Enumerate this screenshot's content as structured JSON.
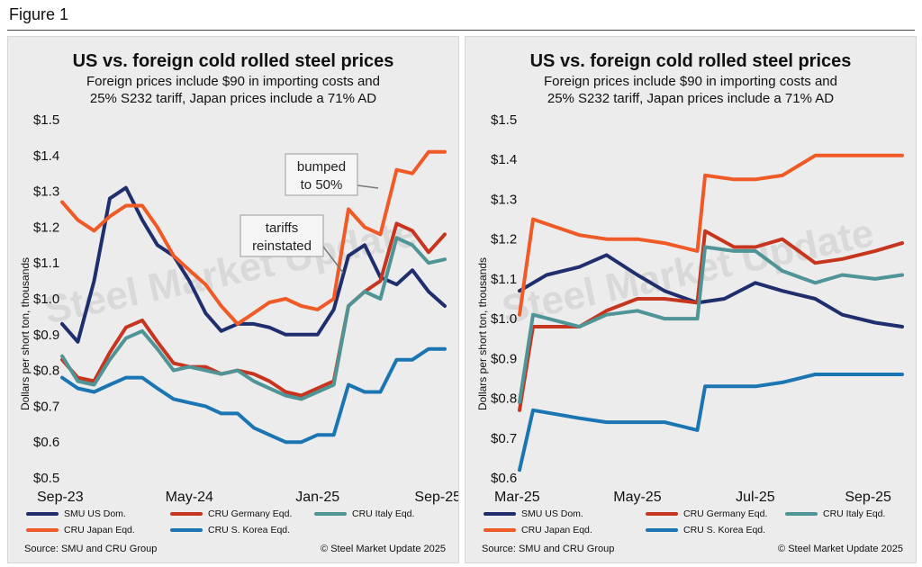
{
  "figure_label": "Figure 1",
  "colors": {
    "SMU US Dom.": "#1f2f6e",
    "CRU Germany Eqd.": "#c8351f",
    "CRU Italy Eqd.": "#4f9496",
    "CRU Japan Eqd.": "#ef5a26",
    "CRU S. Korea Eqd.": "#1b75b3"
  },
  "chart_data": [
    {
      "type": "line",
      "title": "US vs. foreign cold rolled steel prices",
      "subtitle_lines": [
        "Foreign prices include $90 in importing costs and",
        "25% S232 tariff, Japan prices include a 71% AD"
      ],
      "ylabel": "Dollars per short ton, thousands",
      "ylim": [
        0.5,
        1.5
      ],
      "yticks": [
        "$0.5",
        "$0.6",
        "$0.7",
        "$0.8",
        "$0.9",
        "$1.0",
        "$1.1",
        "$1.2",
        "$1.3",
        "$1.4",
        "$1.5"
      ],
      "xlim": [
        "2023-09",
        "2025-09"
      ],
      "xticks": [
        {
          "x": "2023-09",
          "label": "Sep-23"
        },
        {
          "x": "2024-05",
          "label": "May-24"
        },
        {
          "x": "2025-01",
          "label": "Jan-25"
        },
        {
          "x": "2025-09",
          "label": "Sep-25"
        }
      ],
      "annotations": [
        {
          "text": [
            "bumped",
            "to 50%"
          ],
          "points_to": "2025-06"
        },
        {
          "text": [
            "tariffs",
            "reinstated"
          ],
          "points_to": "2025-03"
        }
      ],
      "watermark": "Steel Market Update",
      "series": [
        {
          "name": "SMU US Dom.",
          "points": [
            [
              "2023-09",
              0.93
            ],
            [
              "2023-10",
              0.88
            ],
            [
              "2023-11",
              1.05
            ],
            [
              "2023-12",
              1.28
            ],
            [
              "2024-01",
              1.31
            ],
            [
              "2024-02",
              1.22
            ],
            [
              "2024-03",
              1.15
            ],
            [
              "2024-04",
              1.12
            ],
            [
              "2024-05",
              1.05
            ],
            [
              "2024-06",
              0.96
            ],
            [
              "2024-07",
              0.91
            ],
            [
              "2024-08",
              0.93
            ],
            [
              "2024-09",
              0.93
            ],
            [
              "2024-10",
              0.92
            ],
            [
              "2024-11",
              0.9
            ],
            [
              "2024-12",
              0.9
            ],
            [
              "2025-01",
              0.9
            ],
            [
              "2025-02",
              0.97
            ],
            [
              "2025-03",
              1.12
            ],
            [
              "2025-04",
              1.15
            ],
            [
              "2025-05",
              1.06
            ],
            [
              "2025-06",
              1.04
            ],
            [
              "2025-07",
              1.08
            ],
            [
              "2025-08",
              1.02
            ],
            [
              "2025-09",
              0.98
            ]
          ]
        },
        {
          "name": "CRU Germany Eqd.",
          "points": [
            [
              "2023-09",
              0.83
            ],
            [
              "2023-10",
              0.78
            ],
            [
              "2023-11",
              0.77
            ],
            [
              "2023-12",
              0.85
            ],
            [
              "2024-01",
              0.92
            ],
            [
              "2024-02",
              0.94
            ],
            [
              "2024-03",
              0.88
            ],
            [
              "2024-04",
              0.82
            ],
            [
              "2024-05",
              0.81
            ],
            [
              "2024-06",
              0.81
            ],
            [
              "2024-07",
              0.79
            ],
            [
              "2024-08",
              0.8
            ],
            [
              "2024-09",
              0.79
            ],
            [
              "2024-10",
              0.77
            ],
            [
              "2024-11",
              0.74
            ],
            [
              "2024-12",
              0.73
            ],
            [
              "2025-01",
              0.75
            ],
            [
              "2025-02",
              0.77
            ],
            [
              "2025-03",
              0.98
            ],
            [
              "2025-04",
              1.02
            ],
            [
              "2025-05",
              1.05
            ],
            [
              "2025-06",
              1.21
            ],
            [
              "2025-07",
              1.19
            ],
            [
              "2025-08",
              1.13
            ],
            [
              "2025-09",
              1.18
            ]
          ]
        },
        {
          "name": "CRU Italy Eqd.",
          "points": [
            [
              "2023-09",
              0.84
            ],
            [
              "2023-10",
              0.77
            ],
            [
              "2023-11",
              0.76
            ],
            [
              "2023-12",
              0.83
            ],
            [
              "2024-01",
              0.89
            ],
            [
              "2024-02",
              0.91
            ],
            [
              "2024-03",
              0.86
            ],
            [
              "2024-04",
              0.8
            ],
            [
              "2024-05",
              0.81
            ],
            [
              "2024-06",
              0.8
            ],
            [
              "2024-07",
              0.79
            ],
            [
              "2024-08",
              0.8
            ],
            [
              "2024-09",
              0.77
            ],
            [
              "2024-10",
              0.75
            ],
            [
              "2024-11",
              0.73
            ],
            [
              "2024-12",
              0.72
            ],
            [
              "2025-01",
              0.74
            ],
            [
              "2025-02",
              0.76
            ],
            [
              "2025-03",
              0.98
            ],
            [
              "2025-04",
              1.02
            ],
            [
              "2025-05",
              1.0
            ],
            [
              "2025-06",
              1.17
            ],
            [
              "2025-07",
              1.15
            ],
            [
              "2025-08",
              1.1
            ],
            [
              "2025-09",
              1.11
            ]
          ]
        },
        {
          "name": "CRU Japan Eqd.",
          "points": [
            [
              "2023-09",
              1.27
            ],
            [
              "2023-10",
              1.22
            ],
            [
              "2023-11",
              1.19
            ],
            [
              "2023-12",
              1.23
            ],
            [
              "2024-01",
              1.26
            ],
            [
              "2024-02",
              1.26
            ],
            [
              "2024-03",
              1.2
            ],
            [
              "2024-04",
              1.12
            ],
            [
              "2024-05",
              1.08
            ],
            [
              "2024-06",
              1.04
            ],
            [
              "2024-07",
              0.98
            ],
            [
              "2024-08",
              0.93
            ],
            [
              "2024-09",
              0.96
            ],
            [
              "2024-10",
              0.99
            ],
            [
              "2024-11",
              1.0
            ],
            [
              "2024-12",
              0.98
            ],
            [
              "2025-01",
              0.97
            ],
            [
              "2025-02",
              1.0
            ],
            [
              "2025-03",
              1.25
            ],
            [
              "2025-04",
              1.2
            ],
            [
              "2025-05",
              1.18
            ],
            [
              "2025-06",
              1.36
            ],
            [
              "2025-07",
              1.35
            ],
            [
              "2025-08",
              1.41
            ],
            [
              "2025-09",
              1.41
            ]
          ]
        },
        {
          "name": "CRU S. Korea Eqd.",
          "points": [
            [
              "2023-09",
              0.78
            ],
            [
              "2023-10",
              0.75
            ],
            [
              "2023-11",
              0.74
            ],
            [
              "2023-12",
              0.76
            ],
            [
              "2024-01",
              0.78
            ],
            [
              "2024-02",
              0.78
            ],
            [
              "2024-03",
              0.75
            ],
            [
              "2024-04",
              0.72
            ],
            [
              "2024-05",
              0.71
            ],
            [
              "2024-06",
              0.7
            ],
            [
              "2024-07",
              0.68
            ],
            [
              "2024-08",
              0.68
            ],
            [
              "2024-09",
              0.64
            ],
            [
              "2024-10",
              0.62
            ],
            [
              "2024-11",
              0.6
            ],
            [
              "2024-12",
              0.6
            ],
            [
              "2025-01",
              0.62
            ],
            [
              "2025-02",
              0.62
            ],
            [
              "2025-03",
              0.76
            ],
            [
              "2025-04",
              0.74
            ],
            [
              "2025-05",
              0.74
            ],
            [
              "2025-06",
              0.83
            ],
            [
              "2025-07",
              0.83
            ],
            [
              "2025-08",
              0.86
            ],
            [
              "2025-09",
              0.86
            ]
          ]
        }
      ]
    },
    {
      "type": "line",
      "title": "US vs. foreign cold rolled steel prices",
      "subtitle_lines": [
        "Foreign prices include $90 in importing costs and",
        "25% S232 tariff, Japan prices include a 71% AD"
      ],
      "ylabel": "Dollars per short ton, thousands",
      "ylim": [
        0.6,
        1.5
      ],
      "yticks": [
        "$0.6",
        "$0.7",
        "$0.8",
        "$0.9",
        "$1.0",
        "$1.1",
        "$1.2",
        "$1.3",
        "$1.4",
        "$1.5"
      ],
      "xlim": [
        "2025-03-01",
        "2025-09-15"
      ],
      "xticks": [
        {
          "x": "2025-03-01",
          "label": "Mar-25"
        },
        {
          "x": "2025-05-01",
          "label": "May-25"
        },
        {
          "x": "2025-07-01",
          "label": "Jul-25"
        },
        {
          "x": "2025-09-01",
          "label": "Sep-25"
        }
      ],
      "watermark": "Steel Market Update",
      "series": [
        {
          "name": "SMU US Dom.",
          "points": [
            [
              "2025-03-01",
              1.07
            ],
            [
              "2025-03-15",
              1.11
            ],
            [
              "2025-04-01",
              1.13
            ],
            [
              "2025-04-15",
              1.16
            ],
            [
              "2025-05-01",
              1.11
            ],
            [
              "2025-05-15",
              1.07
            ],
            [
              "2025-06-01",
              1.04
            ],
            [
              "2025-06-15",
              1.05
            ],
            [
              "2025-07-01",
              1.09
            ],
            [
              "2025-07-15",
              1.07
            ],
            [
              "2025-08-01",
              1.05
            ],
            [
              "2025-08-15",
              1.01
            ],
            [
              "2025-09-01",
              0.99
            ],
            [
              "2025-09-15",
              0.98
            ]
          ]
        },
        {
          "name": "CRU Germany Eqd.",
          "points": [
            [
              "2025-03-01",
              0.77
            ],
            [
              "2025-03-08",
              0.98
            ],
            [
              "2025-04-01",
              0.98
            ],
            [
              "2025-04-15",
              1.02
            ],
            [
              "2025-05-01",
              1.05
            ],
            [
              "2025-05-15",
              1.05
            ],
            [
              "2025-06-01",
              1.04
            ],
            [
              "2025-06-05",
              1.22
            ],
            [
              "2025-06-20",
              1.18
            ],
            [
              "2025-07-01",
              1.18
            ],
            [
              "2025-07-15",
              1.2
            ],
            [
              "2025-08-01",
              1.14
            ],
            [
              "2025-08-15",
              1.15
            ],
            [
              "2025-09-01",
              1.17
            ],
            [
              "2025-09-15",
              1.19
            ]
          ]
        },
        {
          "name": "CRU Italy Eqd.",
          "points": [
            [
              "2025-03-01",
              0.79
            ],
            [
              "2025-03-08",
              1.01
            ],
            [
              "2025-04-01",
              0.98
            ],
            [
              "2025-04-15",
              1.01
            ],
            [
              "2025-05-01",
              1.02
            ],
            [
              "2025-05-15",
              1.0
            ],
            [
              "2025-06-01",
              1.0
            ],
            [
              "2025-06-05",
              1.18
            ],
            [
              "2025-06-20",
              1.17
            ],
            [
              "2025-07-01",
              1.17
            ],
            [
              "2025-07-15",
              1.12
            ],
            [
              "2025-08-01",
              1.09
            ],
            [
              "2025-08-15",
              1.11
            ],
            [
              "2025-09-01",
              1.1
            ],
            [
              "2025-09-15",
              1.11
            ]
          ]
        },
        {
          "name": "CRU Japan Eqd.",
          "points": [
            [
              "2025-03-01",
              1.01
            ],
            [
              "2025-03-08",
              1.25
            ],
            [
              "2025-04-01",
              1.21
            ],
            [
              "2025-04-15",
              1.2
            ],
            [
              "2025-05-01",
              1.2
            ],
            [
              "2025-05-15",
              1.19
            ],
            [
              "2025-06-01",
              1.17
            ],
            [
              "2025-06-05",
              1.36
            ],
            [
              "2025-06-20",
              1.35
            ],
            [
              "2025-07-01",
              1.35
            ],
            [
              "2025-07-15",
              1.36
            ],
            [
              "2025-08-01",
              1.41
            ],
            [
              "2025-08-15",
              1.41
            ],
            [
              "2025-09-01",
              1.41
            ],
            [
              "2025-09-15",
              1.41
            ]
          ]
        },
        {
          "name": "CRU S. Korea Eqd.",
          "points": [
            [
              "2025-03-01",
              0.62
            ],
            [
              "2025-03-08",
              0.77
            ],
            [
              "2025-04-01",
              0.75
            ],
            [
              "2025-04-15",
              0.74
            ],
            [
              "2025-05-01",
              0.74
            ],
            [
              "2025-05-15",
              0.74
            ],
            [
              "2025-06-01",
              0.72
            ],
            [
              "2025-06-05",
              0.83
            ],
            [
              "2025-06-20",
              0.83
            ],
            [
              "2025-07-01",
              0.83
            ],
            [
              "2025-07-15",
              0.84
            ],
            [
              "2025-08-01",
              0.86
            ],
            [
              "2025-08-15",
              0.86
            ],
            [
              "2025-09-01",
              0.86
            ],
            [
              "2025-09-15",
              0.86
            ]
          ]
        }
      ]
    }
  ],
  "panels": [
    {
      "legend": [
        "SMU US Dom.",
        "CRU Germany Eqd.",
        "CRU Italy Eqd.",
        "CRU Japan Eqd.",
        "CRU S. Korea Eqd."
      ],
      "source": "Source: SMU and CRU Group",
      "copyright": "© Steel Market Update 2025"
    },
    {
      "legend": [
        "SMU US Dom.",
        "CRU Germany Eqd.",
        "CRU Italy Eqd.",
        "CRU Japan Eqd.",
        "CRU S. Korea Eqd."
      ],
      "source": "Source: SMU and CRU Group",
      "copyright": "© Steel Market Update 2025"
    }
  ]
}
